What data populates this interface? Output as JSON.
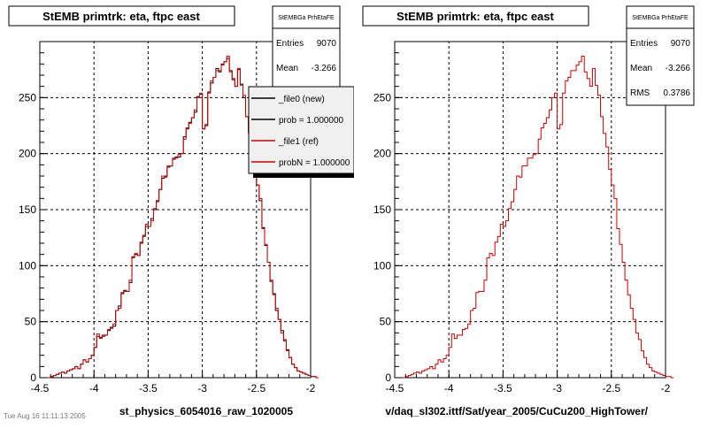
{
  "footer": "Tue Aug 16 11:11:13 2005",
  "chart_data": [
    {
      "type": "histogram",
      "title": "StEMB primtrk: eta, ftpc east",
      "xlabel": "st_physics_6054016_raw_1020005",
      "xlim": [
        -4.5,
        -2
      ],
      "ylim": [
        0,
        300
      ],
      "x_ticks": [
        -4.5,
        -4,
        -3.5,
        -3,
        -2.5,
        -2
      ],
      "y_ticks": [
        0,
        50,
        100,
        150,
        200,
        250
      ],
      "grid": true,
      "bin_width": 0.025,
      "stats_box": {
        "name": "StEMBGa PrhEtaFE",
        "entries_label": "Entries",
        "entries": "9070",
        "mean_label": "Mean",
        "mean": "-3.266",
        "rms_label": "RMS",
        "rms": "0.3786"
      },
      "legend": {
        "position": "top-right",
        "entries": [
          {
            "label": "_file0 (new)",
            "color": "#000000"
          },
          {
            "label": "prob = 1.000000",
            "color": "#000000"
          },
          {
            "label": "_file1 (ref)",
            "color": "#cc0000"
          },
          {
            "label": "probN = 1.000000",
            "color": "#cc0000"
          }
        ]
      },
      "series": [
        {
          "name": "_file0 (new)",
          "color": "#000000"
        },
        {
          "name": "_file1 (ref)",
          "color": "#cc0000"
        }
      ]
    },
    {
      "type": "histogram",
      "title": "StEMB primtrk: eta, ftpc east",
      "xlabel": "v/daq_sl302.ittf/Sat/year_2005/CuCu200_HighTower/",
      "xlim": [
        -4.5,
        -2
      ],
      "ylim": [
        0,
        300
      ],
      "x_ticks": [
        -4.5,
        -4,
        -3.5,
        -3,
        -2.5,
        -2
      ],
      "y_ticks": [
        0,
        50,
        100,
        150,
        200,
        250
      ],
      "grid": true,
      "bin_width": 0.025,
      "stats_box": {
        "name": "StEMBGa PrhEtaFE",
        "entries_label": "Entries",
        "entries": "9070",
        "mean_label": "Mean",
        "mean": "-3.266",
        "rms_label": "RMS",
        "rms": "0.3786"
      },
      "series": [
        {
          "name": "",
          "color": "#cc0000"
        }
      ]
    }
  ]
}
